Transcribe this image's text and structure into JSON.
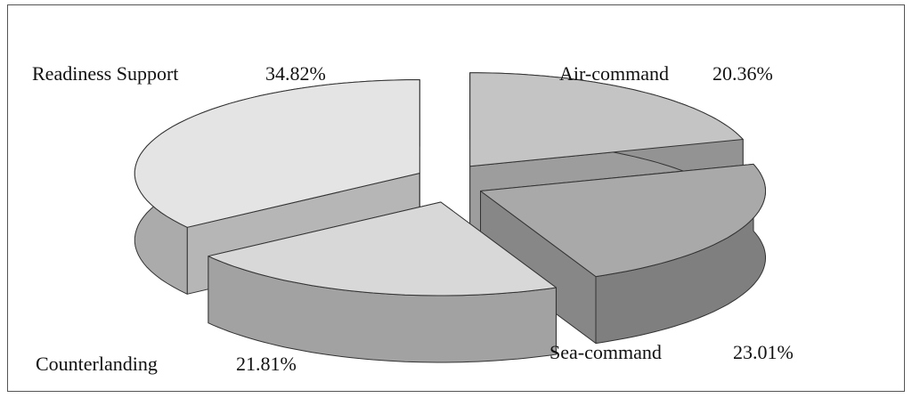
{
  "chart_data": {
    "type": "pie3d",
    "categories": [
      "Air-command",
      "Sea-command",
      "Counterlanding",
      "Readiness Support"
    ],
    "values": [
      20.36,
      23.01,
      21.81,
      34.82
    ],
    "value_labels": [
      "20.36%",
      "23.01%",
      "21.81%",
      "34.82%"
    ],
    "colors": [
      "#c4c4c4",
      "#a9a9a9",
      "#d8d8d8",
      "#e4e4e4"
    ],
    "exploded": true
  }
}
